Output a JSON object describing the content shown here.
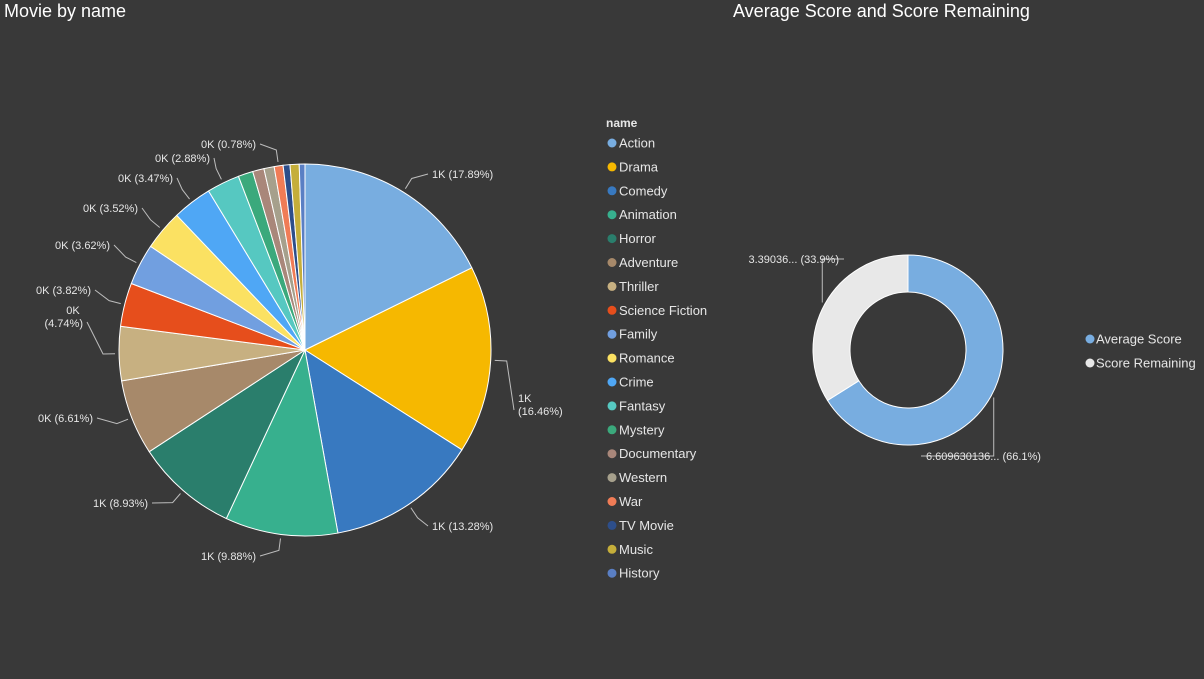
{
  "left_panel": {
    "title": "Movie by name"
  },
  "right_panel": {
    "title": "Average Score and Score Remaining"
  },
  "chart_data": [
    {
      "type": "pie",
      "title": "Movie by name",
      "legend_title": "name",
      "legend_position": "right",
      "slices": [
        {
          "name": "Action",
          "percent": 17.89,
          "label": "1K (17.89%)",
          "color": "#78ADE0"
        },
        {
          "name": "Drama",
          "percent": 16.46,
          "label": "1K (16.46%)",
          "color": "#F6B800"
        },
        {
          "name": "Comedy",
          "percent": 13.28,
          "label": "1K (13.28%)",
          "color": "#3879C0"
        },
        {
          "name": "Animation",
          "percent": 9.88,
          "label": "1K (9.88%)",
          "color": "#37B08E"
        },
        {
          "name": "Horror",
          "percent": 8.93,
          "label": "1K (8.93%)",
          "color": "#2A7E6C"
        },
        {
          "name": "Adventure",
          "percent": 6.61,
          "label": "0K (6.61%)",
          "color": "#A7896A"
        },
        {
          "name": "Thriller",
          "percent": 4.74,
          "label": "0K (4.74%)",
          "color": "#C7B081"
        },
        {
          "name": "Science Fiction",
          "percent": 3.82,
          "label": "0K (3.82%)",
          "color": "#E64E1C"
        },
        {
          "name": "Family",
          "percent": 3.62,
          "label": "0K (3.62%)",
          "color": "#719FE0"
        },
        {
          "name": "Romance",
          "percent": 3.52,
          "label": "0K (3.52%)",
          "color": "#FBE162"
        },
        {
          "name": "Crime",
          "percent": 3.47,
          "label": "0K (3.47%)",
          "color": "#4FA7F5"
        },
        {
          "name": "Fantasy",
          "percent": 2.88,
          "label": "0K (2.88%)",
          "color": "#56C8C1"
        },
        {
          "name": "Mystery",
          "percent": 1.3,
          "label": "",
          "color": "#3BA97C"
        },
        {
          "name": "Documentary",
          "percent": 1.0,
          "label": "",
          "color": "#A9877A"
        },
        {
          "name": "Western",
          "percent": 0.9,
          "label": "",
          "color": "#A6A08C"
        },
        {
          "name": "War",
          "percent": 0.78,
          "label": "0K (0.78%)",
          "color": "#F07C56"
        },
        {
          "name": "TV Movie",
          "percent": 0.6,
          "label": "",
          "color": "#2D4E8A"
        },
        {
          "name": "Music",
          "percent": 0.8,
          "label": "",
          "color": "#C5AE3A"
        },
        {
          "name": "History",
          "percent": 0.5,
          "label": "",
          "color": "#5A7FC4"
        }
      ]
    },
    {
      "type": "pie",
      "title": "Average Score and Score Remaining",
      "donut": true,
      "legend_position": "right",
      "slices": [
        {
          "name": "Average Score",
          "value": 6.609630136,
          "percent": 66.1,
          "label": "6.609630136... (66.1%)",
          "color": "#78ADE0"
        },
        {
          "name": "Score Remaining",
          "value": 3.39036,
          "percent": 33.9,
          "label": "3.39036... (33.9%)",
          "color": "#E8E8E8"
        }
      ]
    }
  ]
}
